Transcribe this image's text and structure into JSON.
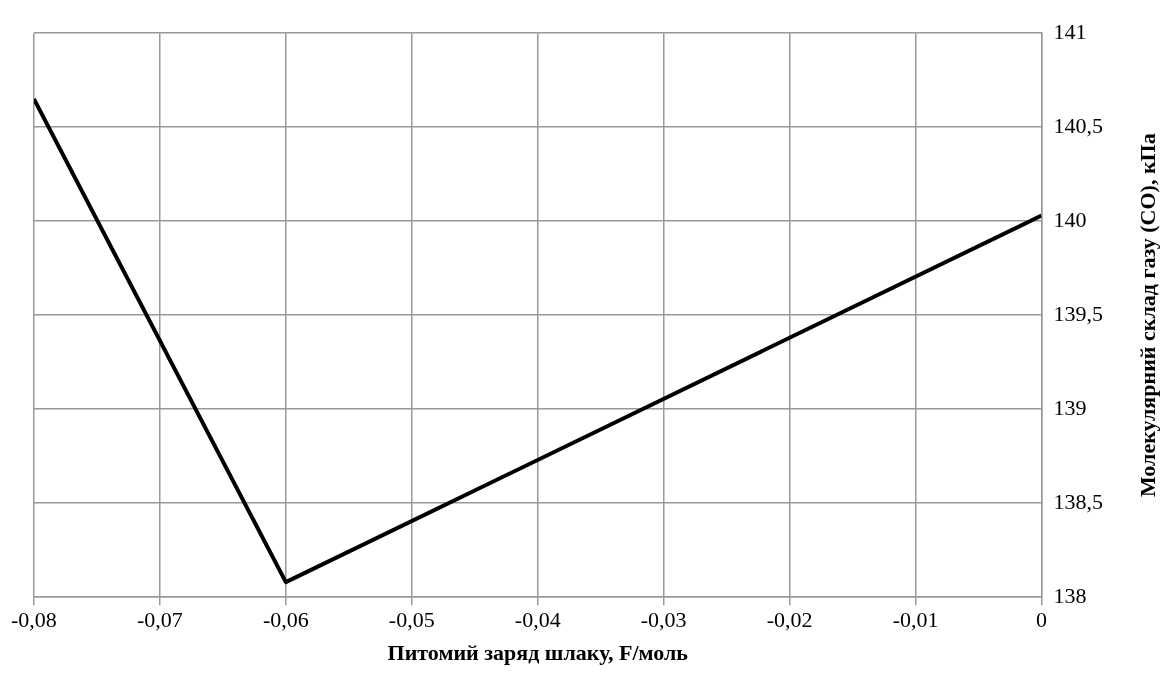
{
  "chart_data": {
    "type": "line",
    "xlabel": "Питомий заряд шлаку, F/моль",
    "ylabel": "Молекулярний склад газу (CO), кПа",
    "x": [
      -0.08,
      -0.06,
      0
    ],
    "series": [
      {
        "color": "#000000",
        "values": [
          140.65,
          138.08,
          140.03
        ]
      }
    ],
    "xlim": [
      -0.08,
      0
    ],
    "xticks": [
      {
        "value": -0.08,
        "label": "-0,08"
      },
      {
        "value": -0.07,
        "label": "-0,07"
      },
      {
        "value": -0.06,
        "label": "-0,06"
      },
      {
        "value": -0.05,
        "label": "-0,05"
      },
      {
        "value": -0.04,
        "label": "-0,04"
      },
      {
        "value": -0.03,
        "label": "-0,03"
      },
      {
        "value": -0.02,
        "label": "-0,02"
      },
      {
        "value": -0.01,
        "label": "-0,01"
      },
      0
    ],
    "ylim": [
      138,
      141
    ],
    "yticks": [
      138,
      {
        "value": 138.5,
        "label": "138,5"
      },
      139,
      {
        "value": 139.5,
        "label": "139,5"
      },
      140,
      {
        "value": 140.5,
        "label": "140,5"
      },
      141
    ],
    "grid": true,
    "legend": false,
    "marker": "none",
    "line_style": "solid"
  }
}
